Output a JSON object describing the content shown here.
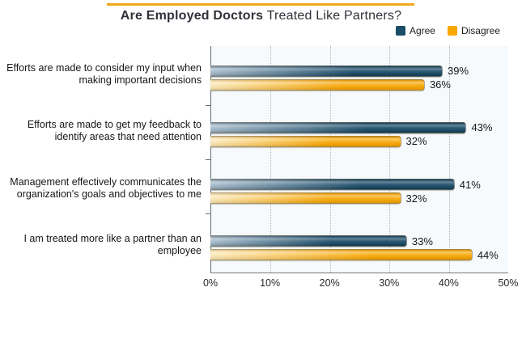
{
  "title": {
    "bold": "Are Employed Doctors",
    "regular": " Treated Like Partners?"
  },
  "colors": {
    "accent_rule": "#F2A71B",
    "agree": "#1B4C68",
    "disagree": "#F8A703",
    "plot_background": "#F7FAFD"
  },
  "legend": {
    "items": [
      {
        "label": "Agree",
        "color": "#1B4C68"
      },
      {
        "label": "Disagree",
        "color": "#F8A703"
      }
    ]
  },
  "chart_data": {
    "type": "bar",
    "orientation": "horizontal",
    "title": "Are Employed Doctors Treated Like Partners?",
    "categories": [
      "Efforts are made to consider my input when making important decisions",
      "Efforts are made to get my feedback to identify areas that need attention",
      "Management effectively communicates the organization's goals and objectives to me",
      "I am treated more like a partner than an employee"
    ],
    "series": [
      {
        "name": "Agree",
        "values": [
          39,
          43,
          41,
          33
        ],
        "labels": [
          "39%",
          "43%",
          "41%",
          "33%"
        ]
      },
      {
        "name": "Disagree",
        "values": [
          36,
          32,
          32,
          44
        ],
        "labels": [
          "36%",
          "32%",
          "32%",
          "44%"
        ]
      }
    ],
    "xlabel": "",
    "ylabel": "",
    "xlim": [
      0,
      50
    ],
    "x_ticks": [
      "0%",
      "10%",
      "20%",
      "30%",
      "40%",
      "50%"
    ],
    "grid": "dotted-vertical",
    "legend_position": "top-right"
  }
}
